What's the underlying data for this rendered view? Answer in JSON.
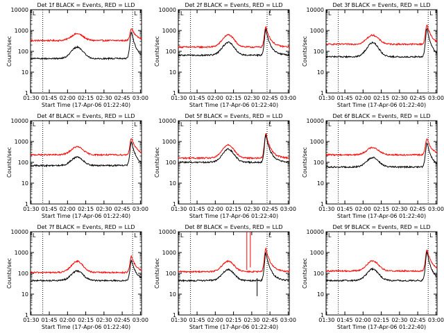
{
  "chart_data": [
    {
      "title": "Det 1f BLACK = Events, RED = LLD",
      "flag": "L",
      "bump_rel": 0.42,
      "flare_rel": 0.91,
      "black": {
        "base": 45,
        "bump": 160,
        "peak": 900
      },
      "red": {
        "base": 330,
        "bump": 700,
        "peak": 1300
      },
      "type": "line",
      "xlabel": "Start Time (17-Apr-06 01:22:40)",
      "ylabel": "Counts/sec",
      "xticks": [
        "01:30",
        "01:45",
        "02:00",
        "02:15",
        "02:30",
        "02:45",
        "03:00"
      ],
      "yticks": [
        "1",
        "10",
        "100",
        "1000",
        "10000"
      ],
      "ylim": [
        1,
        10000
      ],
      "log_y": true
    },
    {
      "title": "Det 2f BLACK = Events, RED = LLD",
      "flag": "L",
      "bump_rel": 0.45,
      "flare_rel": 0.79,
      "black": {
        "base": 65,
        "bump": 270,
        "peak": 1100
      },
      "red": {
        "base": 160,
        "bump": 620,
        "peak": 1500
      },
      "type": "line",
      "xlabel": "Start Time (17-Apr-06 01:22:40)",
      "ylabel": "Counts/sec",
      "xticks": [
        "01:30",
        "01:45",
        "02:00",
        "02:15",
        "02:30",
        "02:45",
        "03:00"
      ],
      "yticks": [
        "1",
        "10",
        "100",
        "1000",
        "10000"
      ],
      "ylim": [
        1,
        10000
      ],
      "log_y": true
    },
    {
      "title": "Det 3f BLACK = Events, RED = LLD",
      "flag": "L",
      "bump_rel": 0.42,
      "flare_rel": 0.91,
      "black": {
        "base": 55,
        "bump": 260,
        "peak": 1300
      },
      "red": {
        "base": 220,
        "bump": 600,
        "peak": 1900
      },
      "type": "line",
      "xlabel": "Start Time (17-Apr-06 01:22:40)",
      "ylabel": "Counts/sec",
      "xticks": [
        "01:30",
        "01:45",
        "02:00",
        "02:15",
        "02:30",
        "02:45",
        "03:00"
      ],
      "yticks": [
        "1",
        "10",
        "100",
        "1000",
        "10000"
      ],
      "ylim": [
        1,
        10000
      ],
      "log_y": true
    },
    {
      "title": "Det 4f BLACK = Events, RED = LLD",
      "flag": "L",
      "bump_rel": 0.42,
      "flare_rel": 0.91,
      "black": {
        "base": 70,
        "bump": 180,
        "peak": 1000
      },
      "red": {
        "base": 230,
        "bump": 560,
        "peak": 1500
      },
      "type": "line",
      "xlabel": "Start Time (17-Apr-06 01:22:40)",
      "ylabel": "Counts/sec",
      "xticks": [
        "01:30",
        "01:45",
        "02:00",
        "02:15",
        "02:30",
        "02:45",
        "03:00"
      ],
      "yticks": [
        "1",
        "10",
        "100",
        "1000",
        "10000"
      ],
      "ylim": [
        1,
        10000
      ],
      "log_y": true
    },
    {
      "title": "Det 5f BLACK = Events, RED = LLD",
      "flag": "L",
      "bump_rel": 0.45,
      "flare_rel": 0.79,
      "black": {
        "base": 100,
        "bump": 430,
        "peak": 2000
      },
      "red": {
        "base": 160,
        "bump": 700,
        "peak": 2600
      },
      "type": "line",
      "xlabel": "Start Time (17-Apr-06 01:22:40)",
      "ylabel": "Counts/sec",
      "xticks": [
        "01:30",
        "01:45",
        "02:00",
        "02:15",
        "02:30",
        "02:45",
        "03:00"
      ],
      "yticks": [
        "1",
        "10",
        "100",
        "1000",
        "10000"
      ],
      "ylim": [
        1,
        10000
      ],
      "log_y": true
    },
    {
      "title": "Det 6f BLACK = Events, RED = LLD",
      "flag": "L",
      "bump_rel": 0.42,
      "flare_rel": 0.91,
      "black": {
        "base": 60,
        "bump": 170,
        "peak": 900
      },
      "red": {
        "base": 230,
        "bump": 520,
        "peak": 1400
      },
      "type": "line",
      "xlabel": "Start Time (17-Apr-06 01:22:40)",
      "ylabel": "Counts/sec",
      "xticks": [
        "01:30",
        "01:45",
        "02:00",
        "02:15",
        "02:30",
        "02:45",
        "03:00"
      ],
      "yticks": [
        "1",
        "10",
        "100",
        "1000",
        "10000"
      ],
      "ylim": [
        1,
        10000
      ],
      "log_y": true
    },
    {
      "title": "Det 7f BLACK = Events, RED = LLD",
      "flag": "L",
      "bump_rel": 0.42,
      "flare_rel": 0.91,
      "black": {
        "base": 45,
        "bump": 130,
        "peak": 420
      },
      "red": {
        "base": 110,
        "bump": 380,
        "peak": 650
      },
      "type": "line",
      "xlabel": "Start Time (17-Apr-06 01:22:40)",
      "ylabel": "Counts/sec",
      "xticks": [
        "01:30",
        "01:45",
        "02:00",
        "02:15",
        "02:30",
        "02:45",
        "03:00"
      ],
      "yticks": [
        "1",
        "10",
        "100",
        "1000",
        "10000"
      ],
      "ylim": [
        1,
        10000
      ],
      "log_y": true
    },
    {
      "title": "Det 8f BLACK = Events, RED = LLD",
      "flag": "L",
      "bump_rel": 0.45,
      "flare_rel": 0.79,
      "black": {
        "base": 45,
        "bump": 150,
        "peak": 1000
      },
      "red": {
        "base": 120,
        "bump": 380,
        "peak": 1600
      },
      "spike_rel": 0.63,
      "spike_top": 10000,
      "dip_rel": 0.71,
      "dip_low": 8,
      "type": "line",
      "xlabel": "Start Time (17-Apr-06 01:22:40)",
      "ylabel": "Counts/sec",
      "xticks": [
        "01:30",
        "01:45",
        "02:00",
        "02:15",
        "02:30",
        "02:45",
        "03:00"
      ],
      "yticks": [
        "1",
        "10",
        "100",
        "1000",
        "10000"
      ],
      "ylim": [
        1,
        10000
      ],
      "log_y": true
    },
    {
      "title": "Det 9f BLACK = Events, RED = LLD",
      "flag": "L",
      "bump_rel": 0.42,
      "flare_rel": 0.91,
      "black": {
        "base": 45,
        "bump": 160,
        "peak": 1100
      },
      "red": {
        "base": 130,
        "bump": 400,
        "peak": 1400
      },
      "type": "line",
      "xlabel": "Start Time (17-Apr-06 01:22:40)",
      "ylabel": "Counts/sec",
      "xticks": [
        "01:30",
        "01:45",
        "02:00",
        "02:15",
        "02:30",
        "02:45",
        "03:00"
      ],
      "yticks": [
        "1",
        "10",
        "100",
        "1000",
        "10000"
      ],
      "ylim": [
        1,
        10000
      ],
      "log_y": true
    }
  ],
  "colors": {
    "events": "#000000",
    "lld": "#ff0000",
    "axes": "#000000",
    "background": "#ffffff"
  }
}
